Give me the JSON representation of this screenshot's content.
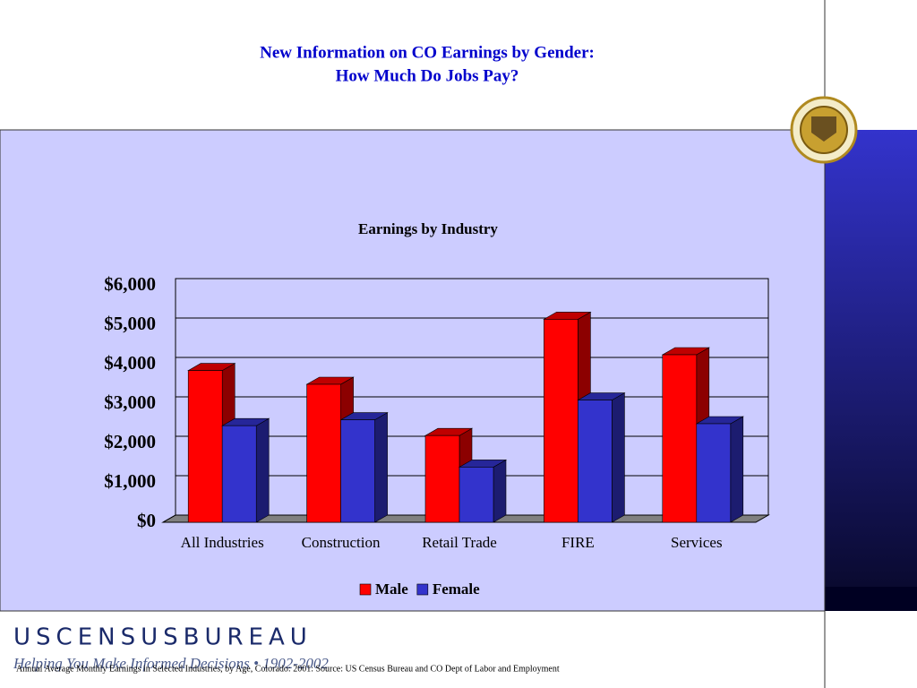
{
  "slide": {
    "title_lines": [
      "New Information on CO Earnings by Gender:",
      "How Much Do Jobs Pay?"
    ],
    "source_note": "Annual Average Monthly Earnings in Selected Industries, by Age, Colorado:  2001: Source: US Census Bureau and CO Dept of Labor and Employment",
    "logo": "USCENSUSBUREAU",
    "tagline": "Helping You Make Informed Decisions • 1902-2002"
  },
  "chart_data": {
    "type": "bar3d",
    "title": "Earnings by Industry",
    "categories": [
      "All Industries",
      "Construction",
      "Retail Trade",
      "FIRE",
      "Services"
    ],
    "series": [
      {
        "name": "Male",
        "color": "#ff0000",
        "values": [
          3850,
          3500,
          2200,
          5150,
          4250
        ]
      },
      {
        "name": "Female",
        "color": "#3333cc",
        "values": [
          2450,
          2600,
          1400,
          3100,
          2500
        ]
      }
    ],
    "ylim": [
      0,
      6000
    ],
    "yticks": [
      {
        "value": 0,
        "label": "$0"
      },
      {
        "value": 1000,
        "label": "$1,000"
      },
      {
        "value": 2000,
        "label": "$2,000"
      },
      {
        "value": 3000,
        "label": "$3,000"
      },
      {
        "value": 4000,
        "label": "$4,000"
      },
      {
        "value": 5000,
        "label": "$5,000"
      },
      {
        "value": 6000,
        "label": "$6,000"
      }
    ],
    "grid": true
  }
}
